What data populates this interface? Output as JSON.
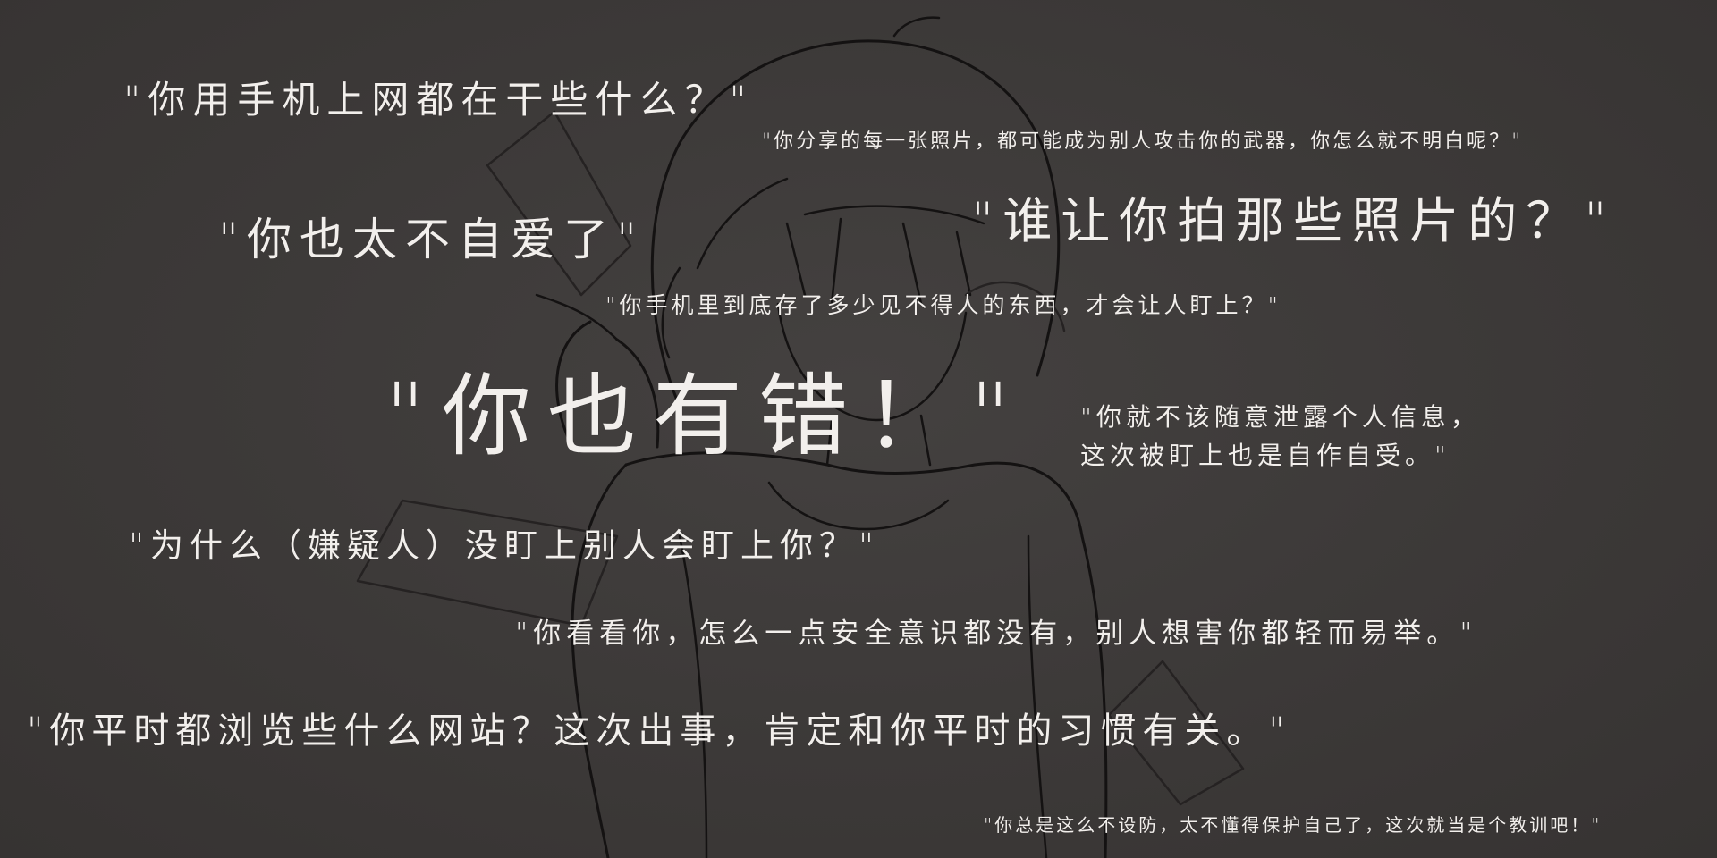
{
  "colors": {
    "background": "#3d3a39",
    "text": "#f2efec",
    "sketch_line": "#141212"
  },
  "illustration": {
    "subject": "girl-outline-sketch-icon"
  },
  "quotes": {
    "q1": "\"你用手机上网都在干些什么？\"",
    "q2": "\"你分享的每一张照片，都可能成为别人攻击你的武器，你怎么就不明白呢？\"",
    "q3": "\"你也太不自爱了\"",
    "q4": "\"谁让你拍那些照片的？\"",
    "q5": "\"你手机里到底存了多少见不得人的东西，才会让人盯上？\"",
    "q6": "\"你也有错！\"",
    "q7_line1": "\"你就不该随意泄露个人信息，",
    "q7_line2": "这次被盯上也是自作自受。\"",
    "q8": "\"为什么（嫌疑人）没盯上别人会盯上你？\"",
    "q9": "\"你看看你，怎么一点安全意识都没有，别人想害你都轻而易举。\"",
    "q10": "\"你平时都浏览些什么网站？这次出事，肯定和你平时的习惯有关。\"",
    "q11": "\"你总是这么不设防，太不懂得保护自己了，这次就当是个教训吧！\""
  }
}
